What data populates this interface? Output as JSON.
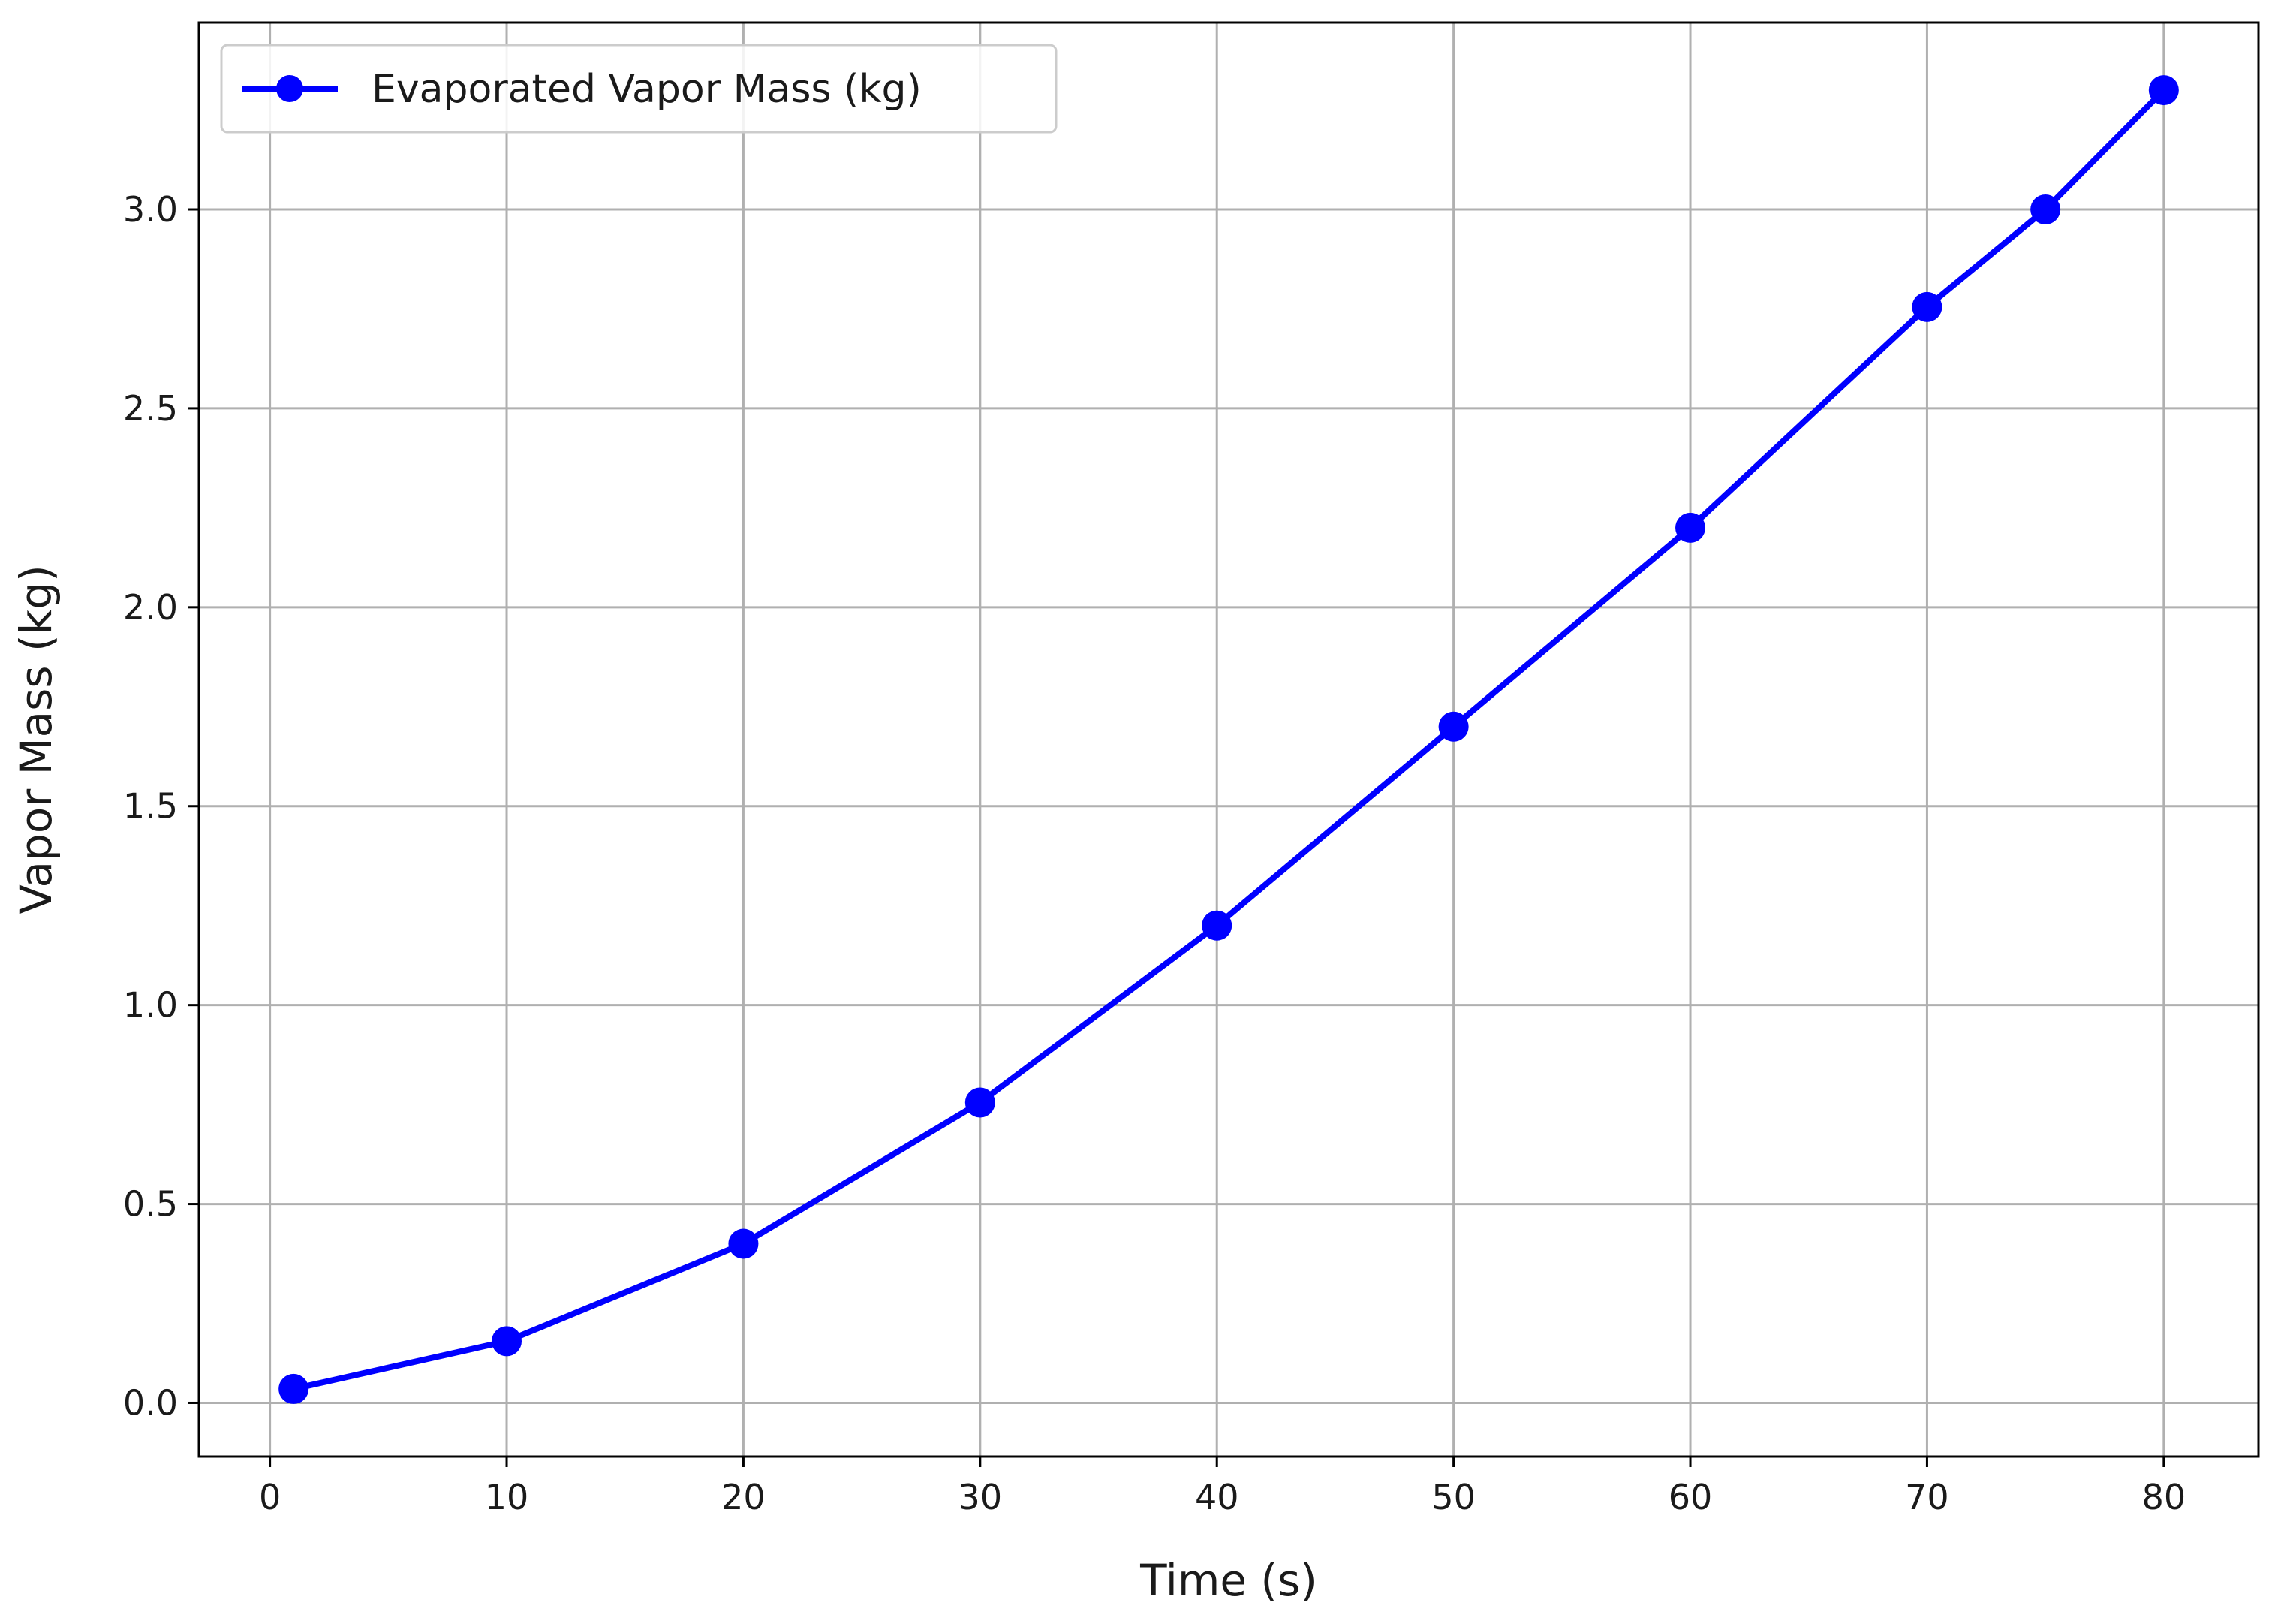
{
  "chart_data": {
    "type": "line",
    "title": "",
    "xlabel": "Time (s)",
    "ylabel": "Vapor Mass (kg)",
    "xlim": [
      -3,
      84
    ],
    "ylim": [
      -0.135,
      3.47
    ],
    "xticks": [
      0,
      10,
      20,
      30,
      40,
      50,
      60,
      70,
      80
    ],
    "xtick_labels": [
      "0",
      "10",
      "20",
      "30",
      "40",
      "50",
      "60",
      "70",
      "80"
    ],
    "yticks": [
      0.0,
      0.5,
      1.0,
      1.5,
      2.0,
      2.5,
      3.0
    ],
    "ytick_labels": [
      "0.0",
      "0.5",
      "1.0",
      "1.5",
      "2.0",
      "2.5",
      "3.0"
    ],
    "grid": true,
    "legend_position": "top-left",
    "series": [
      {
        "name": "Evaporated Vapor Mass (kg)",
        "color": "#0000ff",
        "marker": "circle",
        "x": [
          1,
          10,
          20,
          30,
          40,
          50,
          60,
          70,
          75,
          80
        ],
        "y": [
          0.035,
          0.155,
          0.4,
          0.755,
          1.2,
          1.7,
          2.2,
          2.755,
          3.0,
          3.3
        ]
      }
    ]
  }
}
